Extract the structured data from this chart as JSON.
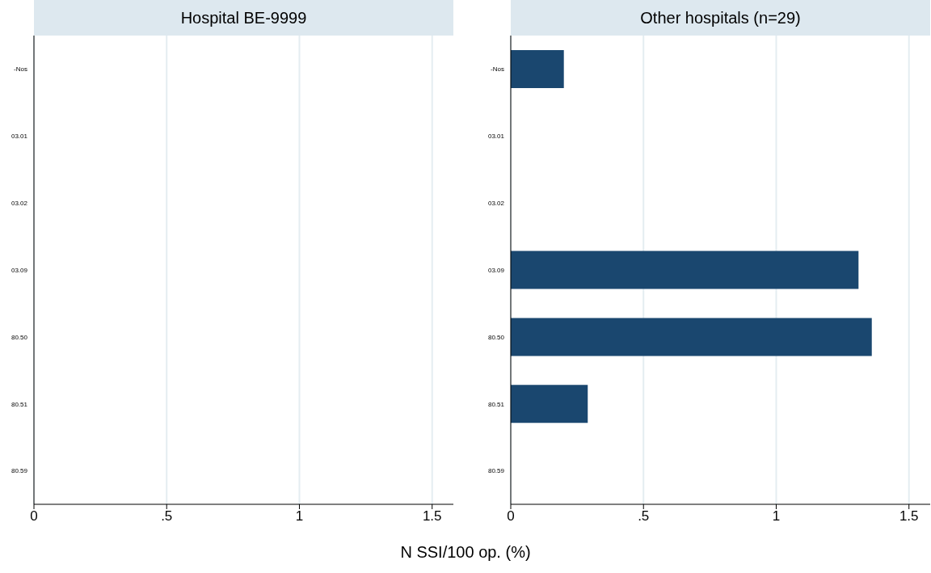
{
  "chart_data": [
    {
      "type": "bar",
      "orientation": "horizontal",
      "title": "Hospital BE-9999",
      "categories": [
        "-Nos",
        "03.01",
        "03.02",
        "03.09",
        "80.50",
        "80.51",
        "80.59"
      ],
      "values": [
        0,
        0,
        0,
        0,
        0,
        0,
        0
      ],
      "color": "#1a476f",
      "xlim": [
        0,
        1.58
      ],
      "xticks": [
        0,
        {
          "value": 0.5,
          "label": ".5"
        },
        1,
        1.5
      ],
      "grid": "x"
    },
    {
      "type": "bar",
      "orientation": "horizontal",
      "title": "Other hospitals (n=29)",
      "xlabel": "N SSI/100 op. (%)",
      "categories": [
        "-Nos",
        "03.01",
        "03.02",
        "03.09",
        "80.50",
        "80.51",
        "80.59"
      ],
      "values": [
        0.2,
        0,
        0,
        1.31,
        1.36,
        0.29,
        0
      ],
      "color": "#1a476f",
      "xlim": [
        0,
        1.58
      ],
      "xticks": [
        0,
        {
          "value": 0.5,
          "label": ".5"
        },
        1,
        1.5
      ],
      "grid": "x"
    }
  ]
}
